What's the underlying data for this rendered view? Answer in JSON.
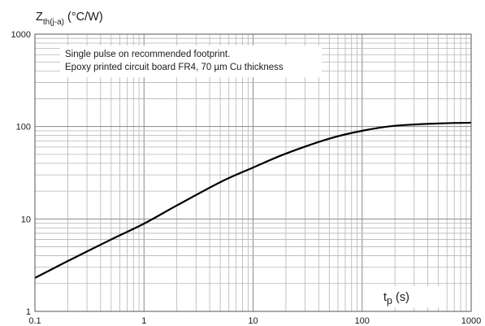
{
  "chart_data": {
    "type": "line",
    "title": "",
    "ylabel": {
      "main": "Z",
      "subscript": "th(j-a)",
      "unit": " (°C/W)"
    },
    "xlabel": {
      "main": "t",
      "subscript": "p",
      "unit": " (s)"
    },
    "xscale": "log",
    "yscale": "log",
    "xlim": [
      0.1,
      1000
    ],
    "ylim": [
      1,
      1000
    ],
    "grid": true,
    "x_tick_labels": [
      "0.1",
      "1",
      "10",
      "100",
      "1000"
    ],
    "y_tick_labels": [
      "1",
      "10",
      "100",
      "1000"
    ],
    "annotations": [
      "Single pulse on recommended footprint.",
      "Epoxy printed circuit board FR4, 70 µm Cu thickness"
    ],
    "series": [
      {
        "color": "#000000",
        "x": [
          0.1,
          0.2,
          0.5,
          1,
          2,
          5,
          10,
          20,
          50,
          100,
          200,
          500,
          1000
        ],
        "y": [
          2.3,
          3.5,
          6,
          8.9,
          14,
          25,
          36,
          51,
          74,
          90,
          102,
          108,
          110
        ]
      }
    ]
  }
}
